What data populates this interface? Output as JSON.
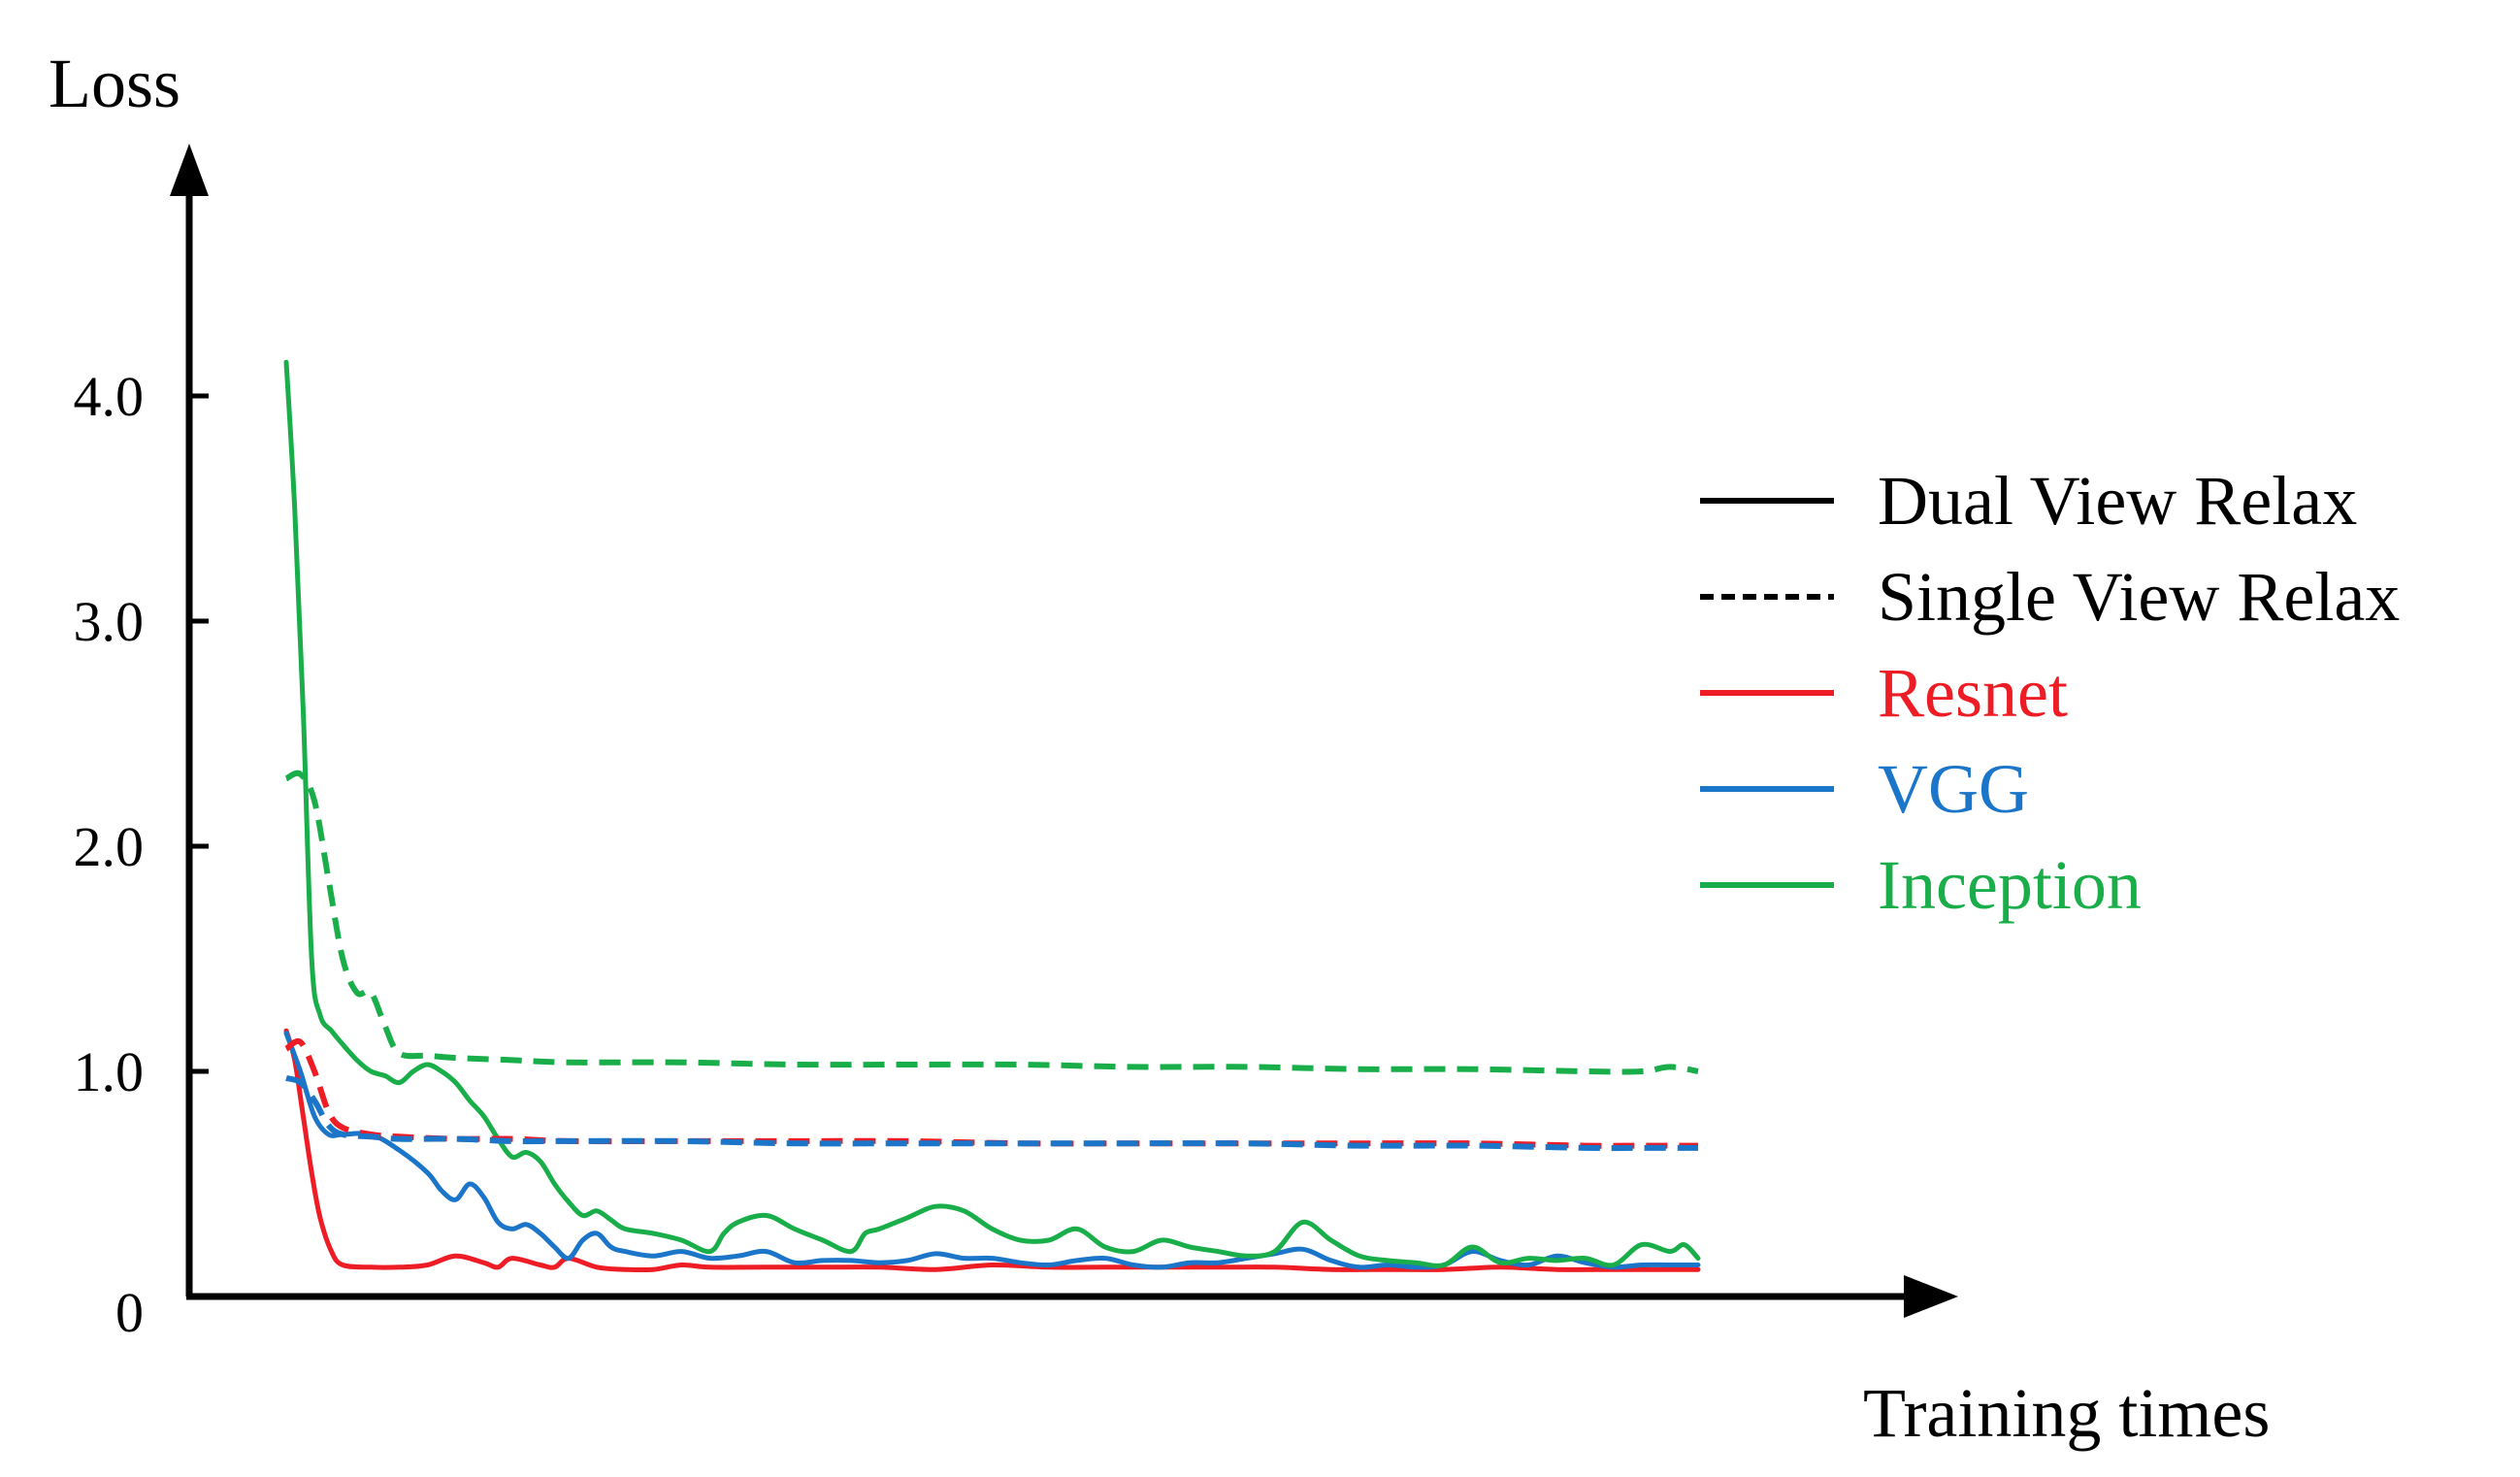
{
  "chart_data": {
    "type": "line",
    "ylabel": "Loss",
    "xlabel": "Training times",
    "ylim": [
      0,
      4.6
    ],
    "yticks": [
      {
        "value": 0,
        "label": "0"
      },
      {
        "value": 1.0,
        "label": "1.0"
      },
      {
        "value": 2.0,
        "label": "2.0"
      },
      {
        "value": 3.0,
        "label": "3.0"
      },
      {
        "value": 4.0,
        "label": "4.0"
      }
    ],
    "x_ticks_shown": false,
    "grid": false,
    "legend_position": "right",
    "legend": [
      {
        "label": "Dual View Relax",
        "color": "#000000",
        "style": "solid"
      },
      {
        "label": "Single View Relax",
        "color": "#000000",
        "style": "dashed"
      },
      {
        "label": "Resnet",
        "color": "#ee1c24",
        "style": "solid"
      },
      {
        "label": "VGG",
        "color": "#1b75c8",
        "style": "solid"
      },
      {
        "label": "Inception",
        "color": "#1aae4a",
        "style": "solid"
      }
    ],
    "series": [
      {
        "model": "Resnet",
        "view": "Dual View Relax",
        "color": "#ee1c24",
        "style": "solid",
        "points": [
          [
            0,
            1.18
          ],
          [
            0.3,
            1.05
          ],
          [
            0.6,
            0.8
          ],
          [
            0.9,
            0.55
          ],
          [
            1.2,
            0.35
          ],
          [
            1.6,
            0.2
          ],
          [
            2,
            0.14
          ],
          [
            3,
            0.13
          ],
          [
            4,
            0.13
          ],
          [
            5,
            0.14
          ],
          [
            6,
            0.18
          ],
          [
            7,
            0.15
          ],
          [
            7.5,
            0.13
          ],
          [
            8,
            0.17
          ],
          [
            9,
            0.14
          ],
          [
            9.5,
            0.13
          ],
          [
            10,
            0.17
          ],
          [
            11,
            0.13
          ],
          [
            12,
            0.12
          ],
          [
            13,
            0.12
          ],
          [
            14,
            0.14
          ],
          [
            15,
            0.13
          ],
          [
            17,
            0.13
          ],
          [
            19,
            0.13
          ],
          [
            21,
            0.13
          ],
          [
            23,
            0.12
          ],
          [
            25,
            0.14
          ],
          [
            27,
            0.13
          ],
          [
            29,
            0.13
          ],
          [
            31,
            0.13
          ],
          [
            33,
            0.13
          ],
          [
            35,
            0.13
          ],
          [
            37,
            0.12
          ],
          [
            39,
            0.12
          ],
          [
            41,
            0.12
          ],
          [
            43,
            0.13
          ],
          [
            45,
            0.12
          ],
          [
            47,
            0.12
          ],
          [
            49,
            0.12
          ],
          [
            50,
            0.12
          ]
        ]
      },
      {
        "model": "VGG",
        "view": "Dual View Relax",
        "color": "#1b75c8",
        "style": "solid",
        "points": [
          [
            0,
            1.17
          ],
          [
            0.5,
            1.0
          ],
          [
            1,
            0.8
          ],
          [
            1.5,
            0.72
          ],
          [
            2,
            0.72
          ],
          [
            3,
            0.72
          ],
          [
            4,
            0.65
          ],
          [
            5,
            0.55
          ],
          [
            5.5,
            0.47
          ],
          [
            6,
            0.43
          ],
          [
            6.5,
            0.5
          ],
          [
            7,
            0.44
          ],
          [
            7.5,
            0.33
          ],
          [
            8,
            0.3
          ],
          [
            8.5,
            0.32
          ],
          [
            9,
            0.28
          ],
          [
            9.5,
            0.22
          ],
          [
            10,
            0.17
          ],
          [
            10.5,
            0.25
          ],
          [
            11,
            0.28
          ],
          [
            11.5,
            0.22
          ],
          [
            12,
            0.2
          ],
          [
            13,
            0.18
          ],
          [
            14,
            0.2
          ],
          [
            15,
            0.17
          ],
          [
            16,
            0.18
          ],
          [
            17,
            0.2
          ],
          [
            18,
            0.15
          ],
          [
            19,
            0.16
          ],
          [
            20,
            0.16
          ],
          [
            21,
            0.15
          ],
          [
            22,
            0.16
          ],
          [
            23,
            0.19
          ],
          [
            24,
            0.17
          ],
          [
            25,
            0.17
          ],
          [
            26,
            0.15
          ],
          [
            27,
            0.14
          ],
          [
            28,
            0.16
          ],
          [
            29,
            0.17
          ],
          [
            30,
            0.14
          ],
          [
            31,
            0.13
          ],
          [
            32,
            0.15
          ],
          [
            33,
            0.15
          ],
          [
            34,
            0.17
          ],
          [
            35,
            0.19
          ],
          [
            36,
            0.21
          ],
          [
            37,
            0.16
          ],
          [
            38,
            0.13
          ],
          [
            39,
            0.14
          ],
          [
            40,
            0.13
          ],
          [
            41,
            0.14
          ],
          [
            42,
            0.2
          ],
          [
            43,
            0.16
          ],
          [
            44,
            0.14
          ],
          [
            45,
            0.18
          ],
          [
            46,
            0.15
          ],
          [
            47,
            0.13
          ],
          [
            48,
            0.14
          ],
          [
            49,
            0.14
          ],
          [
            50,
            0.14
          ]
        ]
      },
      {
        "model": "Inception",
        "view": "Dual View Relax",
        "color": "#1aae4a",
        "style": "solid",
        "points": [
          [
            0,
            4.15
          ],
          [
            0.3,
            3.5
          ],
          [
            0.6,
            2.6
          ],
          [
            0.9,
            1.5
          ],
          [
            1.2,
            1.25
          ],
          [
            1.6,
            1.18
          ],
          [
            2,
            1.12
          ],
          [
            2.5,
            1.05
          ],
          [
            3,
            1.0
          ],
          [
            3.5,
            0.98
          ],
          [
            4,
            0.95
          ],
          [
            4.5,
            1.0
          ],
          [
            5,
            1.03
          ],
          [
            5.5,
            1.0
          ],
          [
            6,
            0.95
          ],
          [
            6.5,
            0.87
          ],
          [
            7,
            0.8
          ],
          [
            7.5,
            0.7
          ],
          [
            8,
            0.62
          ],
          [
            8.5,
            0.64
          ],
          [
            9,
            0.6
          ],
          [
            9.5,
            0.5
          ],
          [
            10,
            0.42
          ],
          [
            10.5,
            0.36
          ],
          [
            11,
            0.38
          ],
          [
            11.5,
            0.34
          ],
          [
            12,
            0.3
          ],
          [
            13,
            0.28
          ],
          [
            14,
            0.25
          ],
          [
            15,
            0.2
          ],
          [
            15.5,
            0.28
          ],
          [
            16,
            0.33
          ],
          [
            17,
            0.36
          ],
          [
            18,
            0.3
          ],
          [
            19,
            0.25
          ],
          [
            20,
            0.2
          ],
          [
            20.5,
            0.28
          ],
          [
            21,
            0.3
          ],
          [
            22,
            0.35
          ],
          [
            23,
            0.4
          ],
          [
            24,
            0.38
          ],
          [
            25,
            0.3
          ],
          [
            26,
            0.25
          ],
          [
            27,
            0.25
          ],
          [
            28,
            0.3
          ],
          [
            29,
            0.22
          ],
          [
            30,
            0.2
          ],
          [
            31,
            0.25
          ],
          [
            32,
            0.22
          ],
          [
            33,
            0.2
          ],
          [
            34,
            0.18
          ],
          [
            35,
            0.2
          ],
          [
            36,
            0.33
          ],
          [
            37,
            0.25
          ],
          [
            38,
            0.18
          ],
          [
            39,
            0.16
          ],
          [
            40,
            0.15
          ],
          [
            41,
            0.14
          ],
          [
            42,
            0.22
          ],
          [
            43,
            0.15
          ],
          [
            44,
            0.17
          ],
          [
            45,
            0.16
          ],
          [
            46,
            0.17
          ],
          [
            47,
            0.14
          ],
          [
            48,
            0.23
          ],
          [
            49,
            0.2
          ],
          [
            49.5,
            0.23
          ],
          [
            50,
            0.17
          ]
        ]
      },
      {
        "model": "Resnet",
        "view": "Single View Relax",
        "color": "#ee1c24",
        "style": "dashed",
        "points": [
          [
            0,
            1.1
          ],
          [
            0.5,
            1.13
          ],
          [
            1,
            1.0
          ],
          [
            1.5,
            0.82
          ],
          [
            2,
            0.75
          ],
          [
            3,
            0.72
          ],
          [
            4,
            0.71
          ],
          [
            6,
            0.7
          ],
          [
            8,
            0.7
          ],
          [
            10,
            0.69
          ],
          [
            14,
            0.69
          ],
          [
            18,
            0.69
          ],
          [
            22,
            0.69
          ],
          [
            26,
            0.68
          ],
          [
            30,
            0.68
          ],
          [
            34,
            0.68
          ],
          [
            38,
            0.68
          ],
          [
            42,
            0.68
          ],
          [
            46,
            0.67
          ],
          [
            48,
            0.67
          ],
          [
            50,
            0.67
          ]
        ]
      },
      {
        "model": "VGG",
        "view": "Single View Relax",
        "color": "#1b75c8",
        "style": "dashed",
        "points": [
          [
            0,
            0.97
          ],
          [
            0.5,
            0.95
          ],
          [
            1,
            0.87
          ],
          [
            1.5,
            0.76
          ],
          [
            2,
            0.72
          ],
          [
            3,
            0.71
          ],
          [
            4,
            0.7
          ],
          [
            6,
            0.7
          ],
          [
            8,
            0.69
          ],
          [
            10,
            0.69
          ],
          [
            14,
            0.69
          ],
          [
            18,
            0.68
          ],
          [
            22,
            0.68
          ],
          [
            26,
            0.68
          ],
          [
            30,
            0.68
          ],
          [
            34,
            0.68
          ],
          [
            38,
            0.67
          ],
          [
            42,
            0.67
          ],
          [
            46,
            0.66
          ],
          [
            48,
            0.66
          ],
          [
            50,
            0.66
          ]
        ]
      },
      {
        "model": "Inception",
        "view": "Single View Relax",
        "color": "#1aae4a",
        "style": "dashed",
        "points": [
          [
            0,
            2.3
          ],
          [
            0.5,
            2.32
          ],
          [
            1,
            2.2
          ],
          [
            1.5,
            1.85
          ],
          [
            2,
            1.5
          ],
          [
            2.5,
            1.35
          ],
          [
            3,
            1.35
          ],
          [
            3.5,
            1.2
          ],
          [
            4,
            1.08
          ],
          [
            5,
            1.07
          ],
          [
            6,
            1.06
          ],
          [
            8,
            1.05
          ],
          [
            10,
            1.04
          ],
          [
            14,
            1.04
          ],
          [
            18,
            1.03
          ],
          [
            22,
            1.03
          ],
          [
            26,
            1.03
          ],
          [
            30,
            1.02
          ],
          [
            34,
            1.02
          ],
          [
            38,
            1.01
          ],
          [
            42,
            1.01
          ],
          [
            46,
            1.0
          ],
          [
            48,
            1.0
          ],
          [
            49,
            1.02
          ],
          [
            50,
            1.0
          ]
        ]
      }
    ]
  }
}
